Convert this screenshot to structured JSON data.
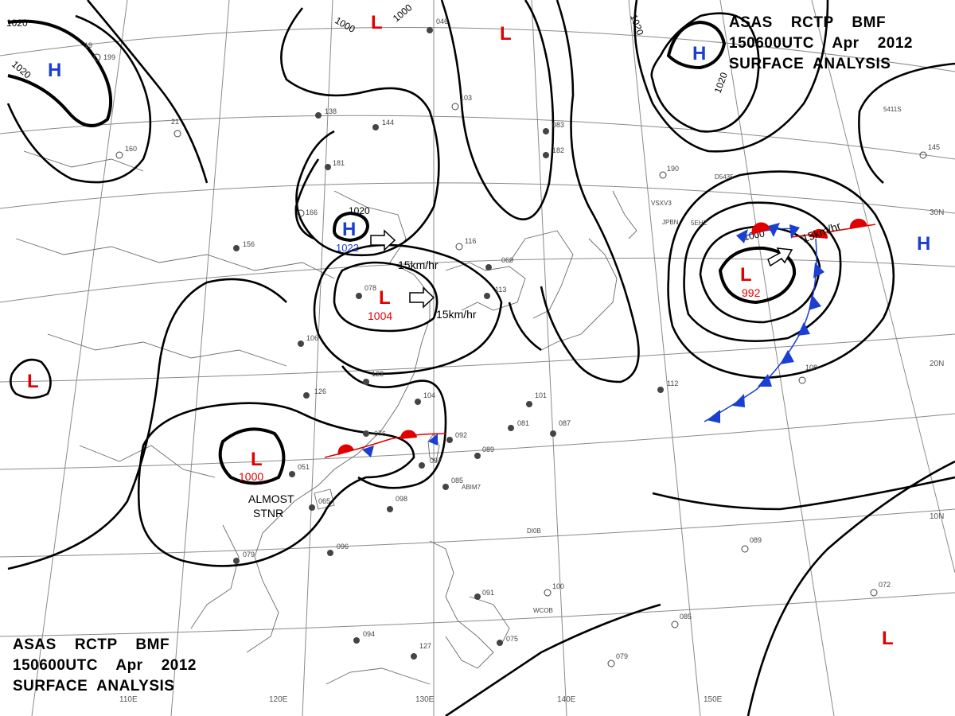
{
  "title": {
    "line1": "ASAS    RCTP    BMF",
    "line2": "150600UTC    Apr    2012",
    "line3": "SURFACE  ANALYSIS"
  },
  "grid_labels": {
    "lon": [
      "110E",
      "120E",
      "130E",
      "140E",
      "150E"
    ],
    "lat": [
      "30N",
      "20N",
      "10N"
    ]
  },
  "isobar_labels": [
    "1020",
    "1020",
    "1000",
    "1000",
    "1020",
    "1020",
    "1020",
    "1000"
  ],
  "pressure_centers": [
    {
      "type": "H",
      "color": "#1a3fd1",
      "value": ""
    },
    {
      "type": "L",
      "color": "#e00000",
      "value": ""
    },
    {
      "type": "L",
      "color": "#e00000",
      "value": ""
    },
    {
      "type": "H",
      "color": "#1a3fd1",
      "value": ""
    },
    {
      "type": "H",
      "color": "#1a3fd1",
      "value": "1022"
    },
    {
      "type": "L",
      "color": "#e00000",
      "value": "1004"
    },
    {
      "type": "L",
      "color": "#e00000",
      "value": ""
    },
    {
      "type": "L",
      "color": "#e00000",
      "value": "1000"
    },
    {
      "type": "L",
      "color": "#e00000",
      "value": "992"
    },
    {
      "type": "H",
      "color": "#1a3fd1",
      "value": ""
    },
    {
      "type": "L",
      "color": "#e00000",
      "value": ""
    }
  ],
  "center_label_1020": "1020",
  "movement_labels": [
    "15km/hr",
    "15km/hr",
    "15km/hr"
  ],
  "stationary_note": [
    "ALMOST",
    "STNR"
  ],
  "ship_ids": [
    "VSXV3",
    "JPBN",
    "5EHZ",
    "D5435",
    "5411S",
    "ABIM7",
    "DI0B",
    "WCOB"
  ],
  "station_obs": [
    "19",
    "199",
    "21",
    "160",
    "138",
    "144",
    "181",
    "166",
    "065",
    "156",
    "078",
    "076",
    "051",
    "065",
    "079",
    "096",
    "098",
    "094",
    "127",
    "123",
    "126",
    "106",
    "104",
    "092",
    "097",
    "085",
    "089",
    "081",
    "087",
    "101",
    "112",
    "108",
    "089",
    "100",
    "091",
    "075",
    "085",
    "079",
    "072",
    "103",
    "116",
    "069",
    "113",
    "083",
    "182",
    "190",
    "145",
    "046"
  ],
  "colors": {
    "high": "#1a3fd1",
    "low": "#e00000",
    "front_cold": "#1a3fd1",
    "front_warm": "#e00000",
    "isobar": "#000000",
    "grid": "#8a8a8a"
  }
}
